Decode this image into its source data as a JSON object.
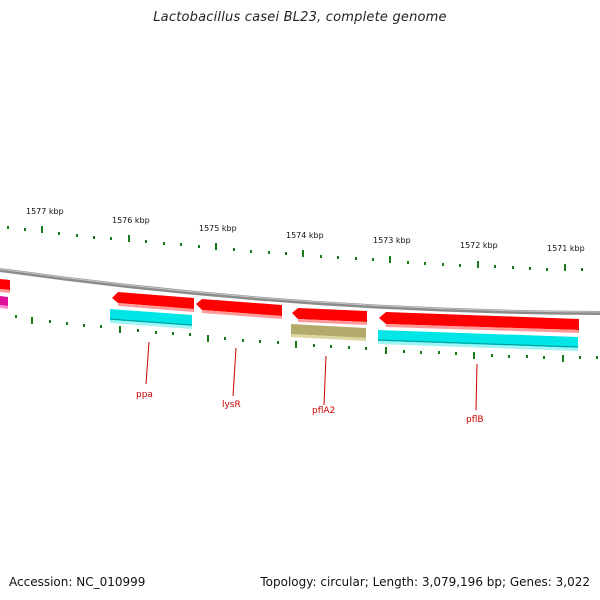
{
  "title": "Lactobacillus casei BL23, complete genome",
  "footer": {
    "accession": "Accession: NC_010999",
    "summary": "Topology: circular; Length: 3,079,196 bp; Genes: 3,022"
  },
  "scale_labels": [
    "1577 kbp",
    "1576 kbp",
    "1575 kbp",
    "1574 kbp",
    "1573 kbp",
    "1572 kbp",
    "1571 kbp"
  ],
  "gene_labels": [
    "ppa",
    "lysR",
    "pflA2",
    "pflB"
  ],
  "colors": {
    "backbone": "#8c8c8c",
    "forward_gene": "#ff0000",
    "reverse_gene": "#ff0000",
    "cds_cyan": "#00e5e5",
    "cds_olive": "#b3ab6b",
    "cds_magenta": "#e0109a",
    "tick": "#1a7a1a",
    "label": "#cc0000"
  }
}
